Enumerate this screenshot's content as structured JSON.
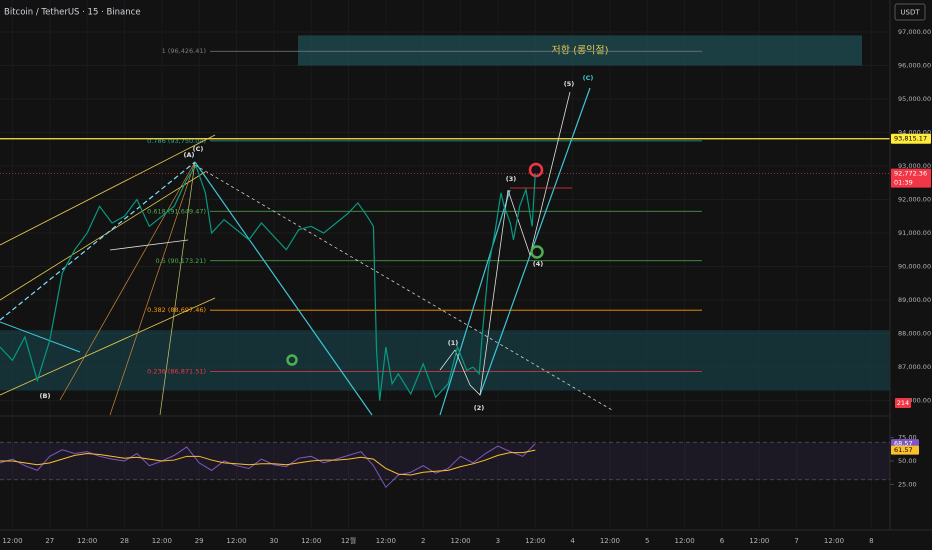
{
  "chart_data": [
    {
      "type": "line",
      "title": "Bitcoin / TetherUS · 15 · Binance",
      "currency": "USDT",
      "color": "#089981",
      "grid": true,
      "x": [
        8,
        12,
        16,
        20,
        24,
        28,
        32,
        36,
        40,
        44,
        48,
        52,
        56,
        60,
        64,
        68,
        71,
        74,
        76,
        80,
        84,
        88,
        92,
        96,
        100,
        104,
        108,
        112,
        116,
        120,
        123,
        126,
        128,
        129,
        130,
        132,
        134,
        136,
        140,
        144,
        148,
        152,
        155,
        158,
        160,
        162,
        163,
        165,
        167,
        169,
        170,
        172,
        173,
        175,
        177,
        179,
        180
      ],
      "values": [
        87600,
        87200,
        87900,
        86600,
        87800,
        89800,
        90500,
        91000,
        91800,
        91300,
        91500,
        92000,
        91200,
        91500,
        91800,
        92600,
        93000,
        92200,
        91000,
        91400,
        91100,
        90800,
        91300,
        90900,
        90500,
        91100,
        91200,
        91000,
        91300,
        91600,
        91900,
        91500,
        91200,
        87500,
        86000,
        87600,
        86500,
        86800,
        86200,
        87100,
        86100,
        86500,
        87600,
        86900,
        87000,
        86800,
        88000,
        90000,
        91000,
        92200,
        91800,
        91300,
        90800,
        91800,
        92300,
        91200,
        92772.36
      ],
      "xlim": [
        8,
        294
      ],
      "ylim": [
        85570,
        97955
      ],
      "xticks": [
        {
          "value": 12,
          "label": "12:00"
        },
        {
          "value": 24,
          "label": "27"
        },
        {
          "value": 36,
          "label": "12:00"
        },
        {
          "value": 48,
          "label": "28"
        },
        {
          "value": 60,
          "label": "12:00"
        },
        {
          "value": 72,
          "label": "29"
        },
        {
          "value": 84,
          "label": "12:00"
        },
        {
          "value": 96,
          "label": "30"
        },
        {
          "value": 108,
          "label": "12:00"
        },
        {
          "value": 120,
          "label": "12월"
        },
        {
          "value": 132,
          "label": "12:00"
        },
        {
          "value": 144,
          "label": "2"
        },
        {
          "value": 156,
          "label": "12:00"
        },
        {
          "value": 168,
          "label": "3"
        },
        {
          "value": 180,
          "label": "12:00"
        },
        {
          "value": 192,
          "label": "4"
        },
        {
          "value": 204,
          "label": "12:00"
        },
        {
          "value": 216,
          "label": "5"
        },
        {
          "value": 228,
          "label": "12:00"
        },
        {
          "value": 240,
          "label": "6"
        },
        {
          "value": 252,
          "label": "12:00"
        },
        {
          "value": 264,
          "label": "7"
        },
        {
          "value": 276,
          "label": "12:00"
        },
        {
          "value": 288,
          "label": "8"
        }
      ],
      "yticks": [
        {
          "value": 86000,
          "label": "86,000.00"
        },
        {
          "value": 87000,
          "label": "87,000.00"
        },
        {
          "value": 88000,
          "label": "88,000.00"
        },
        {
          "value": 89000,
          "label": "89,000.00"
        },
        {
          "value": 90000,
          "label": "90,000.00"
        },
        {
          "value": 91000,
          "label": "91,000.00"
        },
        {
          "value": 92000,
          "label": "92,000.00"
        },
        {
          "value": 93000,
          "label": "93,000.00"
        },
        {
          "value": 94000,
          "label": "94,000.00"
        },
        {
          "value": 95000,
          "label": "95,000.00"
        },
        {
          "value": 96000,
          "label": "96,000.00"
        },
        {
          "value": 97000,
          "label": "97,000.00"
        }
      ],
      "fib_levels": [
        {
          "label": "1 (96,426.41)",
          "value": 96426.41,
          "color": "#787b86"
        },
        {
          "label": "0.786 (93,750.04)",
          "value": 93750.04,
          "color": "#26a69a"
        },
        {
          "label": "0.618 (91,649.47)",
          "value": 91649.47,
          "color": "#4caf50"
        },
        {
          "label": "0.5 (90,173.21)",
          "value": 90173.21,
          "color": "#4caf50"
        },
        {
          "label": "0.382 (88,697.46)",
          "value": 88697.46,
          "color": "#ff9800"
        },
        {
          "label": "0.236 (86,871.51)",
          "value": 86871.51,
          "color": "#f23645"
        }
      ],
      "resistance_zone": {
        "label": "저항 (롱익절)",
        "top": 96900,
        "bottom": 96000,
        "color": "#1d4a4f"
      },
      "support_zone": {
        "top": 88100,
        "bottom": 86300,
        "color": "#173c42"
      },
      "level_line": {
        "value": 93815.17,
        "label": "93,815.17",
        "color": "#ffeb3b"
      },
      "last_price": {
        "value": 92772.36,
        "label": "92,772.36",
        "countdown": "01:39",
        "color": "#f23645"
      },
      "volume_label": "214",
      "wave_labels": [
        "(A)",
        "(C)",
        "(B)",
        "(1)",
        "(2)",
        "(3)",
        "(4)",
        "(5)",
        "(C)"
      ]
    },
    {
      "type": "line",
      "x": [
        8,
        12,
        16,
        20,
        24,
        28,
        32,
        36,
        40,
        44,
        48,
        52,
        56,
        60,
        64,
        68,
        72,
        76,
        80,
        84,
        88,
        92,
        96,
        100,
        104,
        108,
        112,
        116,
        120,
        124,
        128,
        132,
        136,
        140,
        144,
        148,
        152,
        156,
        160,
        164,
        168,
        172,
        176,
        180
      ],
      "series": [
        {
          "color": "#7e57c2",
          "values": [
            48,
            52,
            45,
            40,
            55,
            62,
            58,
            60,
            55,
            52,
            50,
            58,
            45,
            50,
            56,
            65,
            48,
            40,
            50,
            45,
            42,
            52,
            46,
            44,
            53,
            55,
            48,
            52,
            56,
            60,
            45,
            22,
            35,
            38,
            45,
            37,
            42,
            55,
            48,
            58,
            66,
            60,
            55,
            68.57
          ]
        },
        {
          "color": "#fbc02d",
          "values": [
            50,
            50,
            48,
            46,
            48,
            52,
            56,
            58,
            57,
            55,
            53,
            54,
            52,
            50,
            51,
            55,
            55,
            51,
            48,
            47,
            46,
            47,
            47,
            46,
            48,
            50,
            51,
            51,
            52,
            54,
            52,
            42,
            36,
            35,
            38,
            39,
            40,
            44,
            47,
            51,
            56,
            59,
            59,
            61.57
          ]
        }
      ],
      "value_labels": [
        "68.57",
        "61.57"
      ],
      "bands": [
        30,
        70
      ],
      "ylim": [
        3,
        97
      ],
      "yticks": [
        {
          "value": 25,
          "label": "25.00"
        },
        {
          "value": 50,
          "label": "50.00"
        },
        {
          "value": 75,
          "label": "75.00"
        }
      ]
    }
  ]
}
